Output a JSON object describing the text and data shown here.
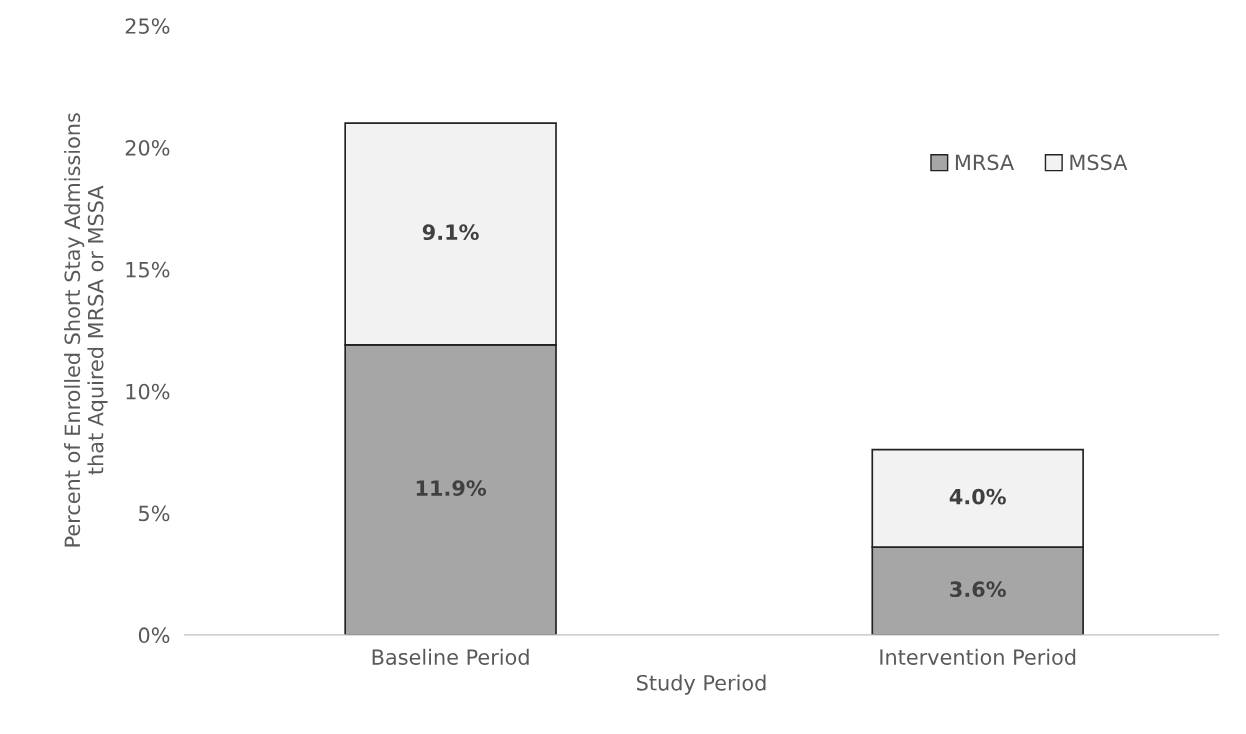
{
  "chart_data": {
    "type": "bar",
    "stacked": true,
    "xlabel": "Study Period",
    "ylabel": "Percent of Enrolled Short Stay Admissions\nthat Aquired MRSA or MSSA",
    "categories": [
      "Baseline Period",
      "Intervention Period"
    ],
    "series": [
      {
        "name": "MRSA",
        "color": "#a6a6a6",
        "values": [
          11.9,
          3.6
        ],
        "value_labels": [
          "11.9%",
          "3.6%"
        ]
      },
      {
        "name": "MSSA",
        "color": "#f2f2f2",
        "values": [
          9.1,
          4.0
        ],
        "value_labels": [
          "9.1%",
          "4.0%"
        ]
      }
    ],
    "ylim": [
      0,
      25
    ],
    "yticks": [
      {
        "value": 0,
        "label": "0%"
      },
      {
        "value": 5,
        "label": "5%"
      },
      {
        "value": 10,
        "label": "10%"
      },
      {
        "value": 15,
        "label": "15%"
      },
      {
        "value": 20,
        "label": "20%"
      },
      {
        "value": 25,
        "label": "25%"
      }
    ],
    "grid": false,
    "legend": "top right"
  }
}
